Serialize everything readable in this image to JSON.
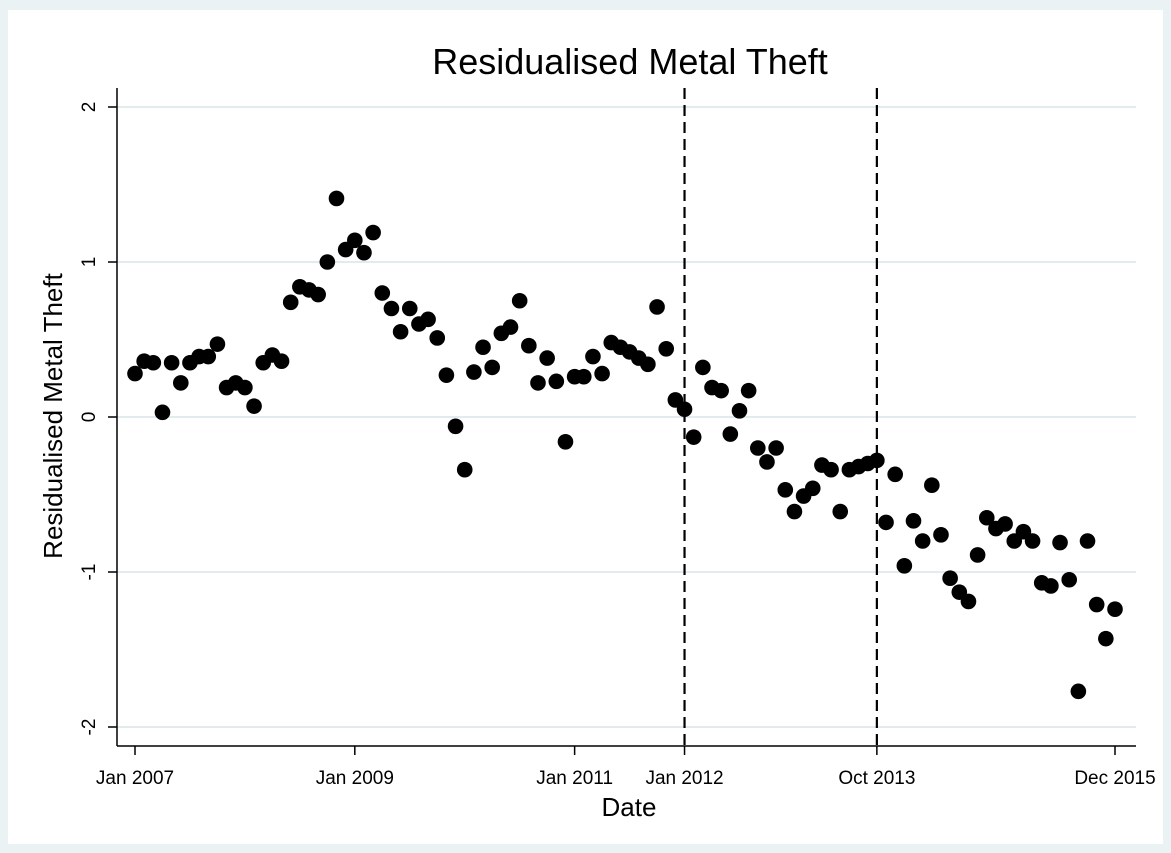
{
  "chart_data": {
    "type": "scatter",
    "title": "Residualised Metal Theft",
    "xlabel": "Date",
    "ylabel": "Residualised Metal Theft",
    "ylim": [
      -2,
      2
    ],
    "xlim": [
      "2007-01",
      "2015-12"
    ],
    "y_ticks": [
      2,
      1,
      0,
      -1,
      -2
    ],
    "x_ticks": [
      {
        "date": "2007-01",
        "label": "Jan 2007"
      },
      {
        "date": "2009-01",
        "label": "Jan 2009"
      },
      {
        "date": "2011-01",
        "label": "Jan 2011"
      },
      {
        "date": "2012-01",
        "label": "Jan 2012"
      },
      {
        "date": "2013-10",
        "label": "Oct 2013"
      },
      {
        "date": "2015-12",
        "label": "Dec 2015"
      }
    ],
    "reference_lines": [
      {
        "x": "2012-01",
        "style": "dashed"
      },
      {
        "x": "2013-10",
        "style": "dashed"
      }
    ],
    "grid": true,
    "marker_color": "#000000",
    "points": [
      {
        "x": "2007-01",
        "y": 0.28
      },
      {
        "x": "2007-02",
        "y": 0.36
      },
      {
        "x": "2007-03",
        "y": 0.35
      },
      {
        "x": "2007-04",
        "y": 0.03
      },
      {
        "x": "2007-05",
        "y": 0.35
      },
      {
        "x": "2007-06",
        "y": 0.22
      },
      {
        "x": "2007-07",
        "y": 0.35
      },
      {
        "x": "2007-08",
        "y": 0.39
      },
      {
        "x": "2007-09",
        "y": 0.39
      },
      {
        "x": "2007-10",
        "y": 0.47
      },
      {
        "x": "2007-11",
        "y": 0.19
      },
      {
        "x": "2007-12",
        "y": 0.22
      },
      {
        "x": "2008-01",
        "y": 0.19
      },
      {
        "x": "2008-02",
        "y": 0.07
      },
      {
        "x": "2008-03",
        "y": 0.35
      },
      {
        "x": "2008-04",
        "y": 0.4
      },
      {
        "x": "2008-05",
        "y": 0.36
      },
      {
        "x": "2008-06",
        "y": 0.74
      },
      {
        "x": "2008-07",
        "y": 0.84
      },
      {
        "x": "2008-08",
        "y": 0.82
      },
      {
        "x": "2008-09",
        "y": 0.79
      },
      {
        "x": "2008-10",
        "y": 1.0
      },
      {
        "x": "2008-11",
        "y": 1.41
      },
      {
        "x": "2008-12",
        "y": 1.08
      },
      {
        "x": "2009-01",
        "y": 1.14
      },
      {
        "x": "2009-02",
        "y": 1.06
      },
      {
        "x": "2009-03",
        "y": 1.19
      },
      {
        "x": "2009-04",
        "y": 0.8
      },
      {
        "x": "2009-05",
        "y": 0.7
      },
      {
        "x": "2009-06",
        "y": 0.55
      },
      {
        "x": "2009-07",
        "y": 0.7
      },
      {
        "x": "2009-08",
        "y": 0.6
      },
      {
        "x": "2009-09",
        "y": 0.63
      },
      {
        "x": "2009-10",
        "y": 0.51
      },
      {
        "x": "2009-11",
        "y": 0.27
      },
      {
        "x": "2009-12",
        "y": -0.06
      },
      {
        "x": "2010-01",
        "y": -0.34
      },
      {
        "x": "2010-02",
        "y": 0.29
      },
      {
        "x": "2010-03",
        "y": 0.45
      },
      {
        "x": "2010-04",
        "y": 0.32
      },
      {
        "x": "2010-05",
        "y": 0.54
      },
      {
        "x": "2010-06",
        "y": 0.58
      },
      {
        "x": "2010-07",
        "y": 0.75
      },
      {
        "x": "2010-08",
        "y": 0.46
      },
      {
        "x": "2010-09",
        "y": 0.22
      },
      {
        "x": "2010-10",
        "y": 0.38
      },
      {
        "x": "2010-11",
        "y": 0.23
      },
      {
        "x": "2010-12",
        "y": -0.16
      },
      {
        "x": "2011-01",
        "y": 0.26
      },
      {
        "x": "2011-02",
        "y": 0.26
      },
      {
        "x": "2011-03",
        "y": 0.39
      },
      {
        "x": "2011-04",
        "y": 0.28
      },
      {
        "x": "2011-05",
        "y": 0.48
      },
      {
        "x": "2011-06",
        "y": 0.45
      },
      {
        "x": "2011-07",
        "y": 0.42
      },
      {
        "x": "2011-08",
        "y": 0.38
      },
      {
        "x": "2011-09",
        "y": 0.34
      },
      {
        "x": "2011-10",
        "y": 0.71
      },
      {
        "x": "2011-11",
        "y": 0.44
      },
      {
        "x": "2011-12",
        "y": 0.11
      },
      {
        "x": "2012-01",
        "y": 0.05
      },
      {
        "x": "2012-02",
        "y": -0.13
      },
      {
        "x": "2012-03",
        "y": 0.32
      },
      {
        "x": "2012-04",
        "y": 0.19
      },
      {
        "x": "2012-05",
        "y": 0.17
      },
      {
        "x": "2012-06",
        "y": -0.11
      },
      {
        "x": "2012-07",
        "y": 0.04
      },
      {
        "x": "2012-08",
        "y": 0.17
      },
      {
        "x": "2012-09",
        "y": -0.2
      },
      {
        "x": "2012-10",
        "y": -0.29
      },
      {
        "x": "2012-11",
        "y": -0.2
      },
      {
        "x": "2012-12",
        "y": -0.47
      },
      {
        "x": "2013-01",
        "y": -0.61
      },
      {
        "x": "2013-02",
        "y": -0.51
      },
      {
        "x": "2013-03",
        "y": -0.46
      },
      {
        "x": "2013-04",
        "y": -0.31
      },
      {
        "x": "2013-05",
        "y": -0.34
      },
      {
        "x": "2013-06",
        "y": -0.61
      },
      {
        "x": "2013-07",
        "y": -0.34
      },
      {
        "x": "2013-08",
        "y": -0.32
      },
      {
        "x": "2013-09",
        "y": -0.3
      },
      {
        "x": "2013-10",
        "y": -0.28
      },
      {
        "x": "2013-11",
        "y": -0.68
      },
      {
        "x": "2013-12",
        "y": -0.37
      },
      {
        "x": "2014-01",
        "y": -0.96
      },
      {
        "x": "2014-02",
        "y": -0.67
      },
      {
        "x": "2014-03",
        "y": -0.8
      },
      {
        "x": "2014-04",
        "y": -0.44
      },
      {
        "x": "2014-05",
        "y": -0.76
      },
      {
        "x": "2014-06",
        "y": -1.04
      },
      {
        "x": "2014-07",
        "y": -1.13
      },
      {
        "x": "2014-08",
        "y": -1.19
      },
      {
        "x": "2014-09",
        "y": -0.89
      },
      {
        "x": "2014-10",
        "y": -0.65
      },
      {
        "x": "2014-11",
        "y": -0.72
      },
      {
        "x": "2014-12",
        "y": -0.69
      },
      {
        "x": "2015-01",
        "y": -0.8
      },
      {
        "x": "2015-02",
        "y": -0.74
      },
      {
        "x": "2015-03",
        "y": -0.8
      },
      {
        "x": "2015-04",
        "y": -1.07
      },
      {
        "x": "2015-05",
        "y": -1.09
      },
      {
        "x": "2015-06",
        "y": -0.81
      },
      {
        "x": "2015-07",
        "y": -1.05
      },
      {
        "x": "2015-08",
        "y": -1.77
      },
      {
        "x": "2015-09",
        "y": -0.8
      },
      {
        "x": "2015-10",
        "y": -1.21
      },
      {
        "x": "2015-11",
        "y": -1.43
      },
      {
        "x": "2015-12",
        "y": -1.24
      }
    ]
  }
}
